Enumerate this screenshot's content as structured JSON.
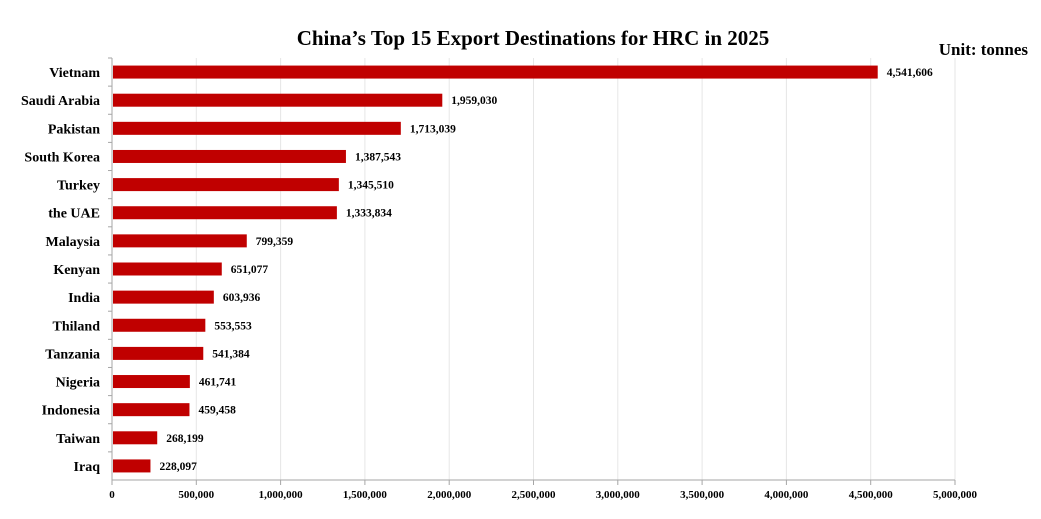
{
  "chart_data": {
    "type": "bar",
    "orientation": "horizontal",
    "title": "China’s Top 15 Export Destinations for HRC in 2025",
    "unit_label": "Unit: tonnes",
    "categories": [
      "Vietnam",
      "Saudi Arabia",
      "Pakistan",
      "South Korea",
      "Turkey",
      "the UAE",
      "Malaysia",
      "Kenyan",
      "India",
      "Thiland",
      "Tanzania",
      "Nigeria",
      "Indonesia",
      "Taiwan",
      "Iraq"
    ],
    "values": [
      4541606,
      1959030,
      1713039,
      1387543,
      1345510,
      1333834,
      799359,
      651077,
      603936,
      553553,
      541384,
      461741,
      459458,
      268199,
      228097
    ],
    "value_labels": [
      "4,541,606",
      "1,959,030",
      "1,713,039",
      "1,387,543",
      "1,345,510",
      "1,333,834",
      "799,359",
      "651,077",
      "603,936",
      "553,553",
      "541,384",
      "461,741",
      "459,458",
      "268,199",
      "228,097"
    ],
    "xlim": [
      0,
      5000000
    ],
    "xticks": [
      0,
      500000,
      1000000,
      1500000,
      2000000,
      2500000,
      3000000,
      3500000,
      4000000,
      4500000,
      5000000
    ],
    "xtick_labels": [
      "0",
      "500,000",
      "1,000,000",
      "1,500,000",
      "2,000,000",
      "2,500,000",
      "3,000,000",
      "3,500,000",
      "4,000,000",
      "4,500,000",
      "5,000,000"
    ],
    "grid": "vertical",
    "legend": "none",
    "bar_color": "#c00000",
    "grid_color": "#e6e6e6",
    "axis_color": "#a6a6a6",
    "text_color": "#000000"
  }
}
